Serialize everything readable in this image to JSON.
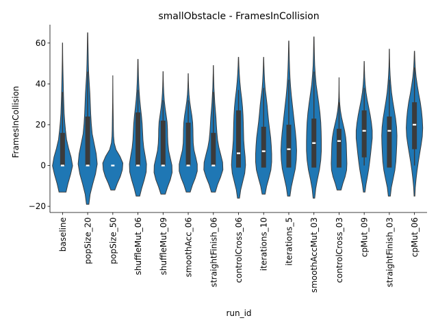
{
  "chart_data": {
    "type": "violin",
    "title": "smallObstacle - FramesInCollision",
    "xlabel": "run_id",
    "ylabel": "FramesInCollision",
    "ylim": [
      -23,
      69
    ],
    "yticks": [
      -20,
      0,
      20,
      40,
      60
    ],
    "grid": false,
    "color": "#1f77b4",
    "categories": [
      "baseline",
      "popSize_20",
      "popSize_50",
      "shuffleMut_06",
      "shuffleMut_09",
      "smoothAcc_06",
      "straightFinish_06",
      "controlCross_06",
      "iterations_10",
      "iterations_5",
      "smoothAccMut_03",
      "controlCross_03",
      "cpMut_09",
      "straightFinish_03",
      "cpMut_06"
    ],
    "stats": [
      {
        "min": -13,
        "max": 60,
        "q1": 0,
        "median": 0,
        "q3": 16,
        "wlow": 0,
        "whigh": 36
      },
      {
        "min": -19,
        "max": 65,
        "q1": 0,
        "median": 0,
        "q3": 24,
        "wlow": 0,
        "whigh": 46
      },
      {
        "min": -12,
        "max": 44,
        "q1": 0,
        "median": 0,
        "q3": 0,
        "wlow": 0,
        "whigh": 0
      },
      {
        "min": -15,
        "max": 52,
        "q1": 0,
        "median": 0,
        "q3": 26,
        "wlow": 0,
        "whigh": 37
      },
      {
        "min": -14,
        "max": 46,
        "q1": 0,
        "median": 0,
        "q3": 22,
        "wlow": 0,
        "whigh": 32
      },
      {
        "min": -13,
        "max": 45,
        "q1": 0,
        "median": 0,
        "q3": 21,
        "wlow": 0,
        "whigh": 32
      },
      {
        "min": -13,
        "max": 49,
        "q1": 0,
        "median": 0,
        "q3": 16,
        "wlow": 0,
        "whigh": 36
      },
      {
        "min": -16,
        "max": 53,
        "q1": -1,
        "median": 6,
        "q3": 27,
        "wlow": -1,
        "whigh": 37
      },
      {
        "min": -14,
        "max": 53,
        "q1": -1,
        "median": 7,
        "q3": 19,
        "wlow": -1,
        "whigh": 38
      },
      {
        "min": -15,
        "max": 61,
        "q1": -1,
        "median": 8,
        "q3": 20,
        "wlow": -1,
        "whigh": 42
      },
      {
        "min": -16,
        "max": 63,
        "q1": -1,
        "median": 11,
        "q3": 23,
        "wlow": -1,
        "whigh": 46
      },
      {
        "min": -12,
        "max": 43,
        "q1": -1,
        "median": 12,
        "q3": 18,
        "wlow": -1,
        "whigh": 31
      },
      {
        "min": -13,
        "max": 51,
        "q1": 4,
        "median": 17,
        "q3": 27,
        "wlow": 0,
        "whigh": 38
      },
      {
        "min": -15,
        "max": 57,
        "q1": -1,
        "median": 17,
        "q3": 24,
        "wlow": -1,
        "whigh": 42
      },
      {
        "min": -15,
        "max": 56,
        "q1": 8,
        "median": 20,
        "q3": 31,
        "wlow": 0,
        "whigh": 48
      }
    ],
    "density": [
      [
        0.35,
        0.55,
        0.8,
        1.0,
        0.85,
        0.6,
        0.4,
        0.3,
        0.22,
        0.16,
        0.13,
        0.1,
        0.08,
        0.06,
        0.04,
        0.025,
        0.015,
        0.01
      ],
      [
        0.12,
        0.25,
        0.5,
        0.78,
        0.95,
        0.85,
        0.65,
        0.45,
        0.36,
        0.3,
        0.26,
        0.22,
        0.16,
        0.1,
        0.07,
        0.05,
        0.03,
        0.015
      ],
      [
        0.2,
        0.45,
        0.75,
        0.95,
        1.0,
        0.72,
        0.32,
        0.14,
        0.08,
        0.06,
        0.05,
        0.04,
        0.03,
        0.02,
        0.015,
        0.01,
        0.005,
        0.003
      ],
      [
        0.18,
        0.38,
        0.62,
        0.82,
        0.85,
        0.72,
        0.58,
        0.5,
        0.46,
        0.42,
        0.35,
        0.26,
        0.18,
        0.12,
        0.08,
        0.05,
        0.03,
        0.015
      ],
      [
        0.22,
        0.45,
        0.72,
        0.9,
        0.88,
        0.72,
        0.56,
        0.48,
        0.45,
        0.44,
        0.4,
        0.3,
        0.2,
        0.12,
        0.07,
        0.04,
        0.02,
        0.01
      ],
      [
        0.2,
        0.42,
        0.7,
        0.9,
        0.9,
        0.75,
        0.58,
        0.5,
        0.48,
        0.47,
        0.44,
        0.36,
        0.25,
        0.15,
        0.08,
        0.04,
        0.02,
        0.01
      ],
      [
        0.2,
        0.42,
        0.72,
        0.95,
        0.92,
        0.74,
        0.55,
        0.42,
        0.35,
        0.3,
        0.26,
        0.2,
        0.14,
        0.1,
        0.06,
        0.04,
        0.02,
        0.01
      ],
      [
        0.1,
        0.22,
        0.42,
        0.62,
        0.7,
        0.66,
        0.58,
        0.52,
        0.5,
        0.48,
        0.45,
        0.4,
        0.32,
        0.22,
        0.14,
        0.08,
        0.04,
        0.015
      ],
      [
        0.15,
        0.3,
        0.52,
        0.72,
        0.8,
        0.8,
        0.76,
        0.7,
        0.6,
        0.5,
        0.42,
        0.35,
        0.26,
        0.16,
        0.1,
        0.06,
        0.03,
        0.01
      ],
      [
        0.12,
        0.25,
        0.45,
        0.65,
        0.75,
        0.78,
        0.74,
        0.66,
        0.56,
        0.46,
        0.36,
        0.26,
        0.18,
        0.12,
        0.08,
        0.05,
        0.03,
        0.015
      ],
      [
        0.08,
        0.18,
        0.35,
        0.55,
        0.68,
        0.74,
        0.74,
        0.72,
        0.68,
        0.6,
        0.48,
        0.35,
        0.22,
        0.14,
        0.08,
        0.05,
        0.03,
        0.015
      ],
      [
        0.2,
        0.38,
        0.6,
        0.75,
        0.78,
        0.76,
        0.74,
        0.72,
        0.66,
        0.55,
        0.4,
        0.25,
        0.14,
        0.07,
        0.03,
        0.015,
        0.008,
        0.004
      ],
      [
        0.08,
        0.18,
        0.32,
        0.45,
        0.55,
        0.64,
        0.72,
        0.8,
        0.8,
        0.72,
        0.6,
        0.45,
        0.3,
        0.18,
        0.1,
        0.05,
        0.025,
        0.01
      ],
      [
        0.1,
        0.2,
        0.38,
        0.55,
        0.65,
        0.7,
        0.74,
        0.76,
        0.72,
        0.62,
        0.48,
        0.34,
        0.22,
        0.14,
        0.08,
        0.04,
        0.02,
        0.01
      ],
      [
        0.04,
        0.08,
        0.16,
        0.26,
        0.38,
        0.52,
        0.66,
        0.78,
        0.82,
        0.78,
        0.7,
        0.58,
        0.42,
        0.28,
        0.16,
        0.08,
        0.04,
        0.015
      ]
    ]
  }
}
